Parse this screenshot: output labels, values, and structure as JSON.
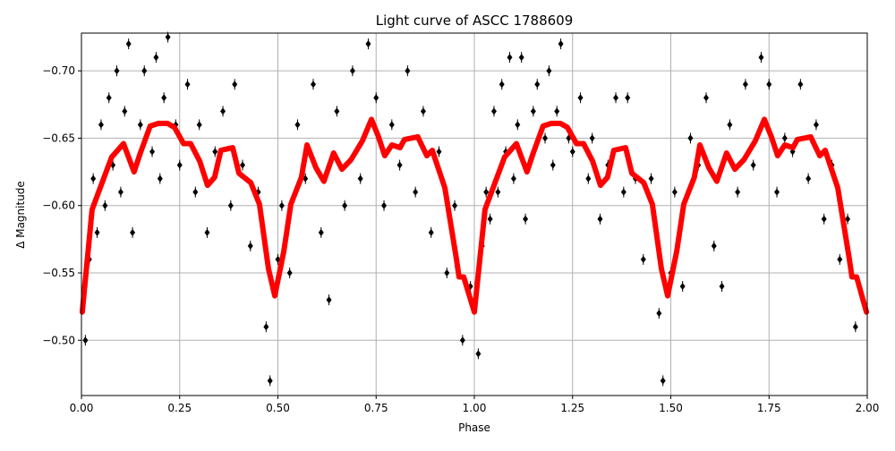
{
  "chart_data": {
    "type": "scatter",
    "title": "Light curve of ASCC 1788609",
    "xlabel": "Phase",
    "ylabel": "Δ Magnitude",
    "xlim": [
      0,
      2
    ],
    "ylim": [
      -0.728,
      -0.459
    ],
    "y_inverted": true,
    "grid": true,
    "x_ticks": [
      0,
      0.25,
      0.5,
      0.75,
      1.0,
      1.25,
      1.5,
      1.75,
      2.0
    ],
    "x_tick_labels": [
      "0.00",
      "0.25",
      "0.50",
      "0.75",
      "1.00",
      "1.25",
      "1.50",
      "1.75",
      "2.00"
    ],
    "y_ticks": [
      -0.7,
      -0.65,
      -0.6,
      -0.55,
      -0.5
    ],
    "y_tick_labels": [
      "−0.70",
      "−0.65",
      "−0.60",
      "−0.55",
      "−0.50"
    ],
    "colors": {
      "observations": "#000000",
      "fit": "#ff0000",
      "grid": "#b0b0b0"
    },
    "series": [
      {
        "kind": "errorbar-scatter",
        "points": [
          [
            0.01,
            -0.5
          ],
          [
            0.02,
            -0.56
          ],
          [
            0.03,
            -0.62
          ],
          [
            0.04,
            -0.58
          ],
          [
            0.05,
            -0.66
          ],
          [
            0.06,
            -0.6
          ],
          [
            0.07,
            -0.68
          ],
          [
            0.08,
            -0.63
          ],
          [
            0.09,
            -0.7
          ],
          [
            0.1,
            -0.61
          ],
          [
            0.11,
            -0.67
          ],
          [
            0.12,
            -0.72
          ],
          [
            0.13,
            -0.58
          ],
          [
            0.15,
            -0.66
          ],
          [
            0.16,
            -0.7
          ],
          [
            0.18,
            -0.64
          ],
          [
            0.19,
            -0.71
          ],
          [
            0.2,
            -0.62
          ],
          [
            0.21,
            -0.68
          ],
          [
            0.22,
            -0.725
          ],
          [
            0.24,
            -0.66
          ],
          [
            0.25,
            -0.63
          ],
          [
            0.27,
            -0.69
          ],
          [
            0.29,
            -0.61
          ],
          [
            0.3,
            -0.66
          ],
          [
            0.32,
            -0.58
          ],
          [
            0.34,
            -0.64
          ],
          [
            0.36,
            -0.67
          ],
          [
            0.38,
            -0.6
          ],
          [
            0.39,
            -0.69
          ],
          [
            0.41,
            -0.63
          ],
          [
            0.43,
            -0.57
          ],
          [
            0.45,
            -0.61
          ],
          [
            0.47,
            -0.51
          ],
          [
            0.48,
            -0.47
          ],
          [
            0.5,
            -0.56
          ],
          [
            0.51,
            -0.6
          ],
          [
            0.53,
            -0.55
          ],
          [
            0.55,
            -0.66
          ],
          [
            0.57,
            -0.62
          ],
          [
            0.59,
            -0.69
          ],
          [
            0.61,
            -0.58
          ],
          [
            0.63,
            -0.53
          ],
          [
            0.65,
            -0.67
          ],
          [
            0.67,
            -0.6
          ],
          [
            0.69,
            -0.7
          ],
          [
            0.71,
            -0.62
          ],
          [
            0.73,
            -0.72
          ],
          [
            0.75,
            -0.68
          ],
          [
            0.77,
            -0.6
          ],
          [
            0.79,
            -0.66
          ],
          [
            0.81,
            -0.63
          ],
          [
            0.83,
            -0.7
          ],
          [
            0.85,
            -0.61
          ],
          [
            0.87,
            -0.67
          ],
          [
            0.89,
            -0.58
          ],
          [
            0.91,
            -0.64
          ],
          [
            0.93,
            -0.55
          ],
          [
            0.95,
            -0.6
          ],
          [
            0.97,
            -0.5
          ],
          [
            0.99,
            -0.54
          ],
          [
            1.01,
            -0.49
          ],
          [
            1.02,
            -0.57
          ],
          [
            1.03,
            -0.61
          ],
          [
            1.04,
            -0.59
          ],
          [
            1.05,
            -0.67
          ],
          [
            1.06,
            -0.61
          ],
          [
            1.07,
            -0.69
          ],
          [
            1.08,
            -0.64
          ],
          [
            1.09,
            -0.71
          ],
          [
            1.1,
            -0.62
          ],
          [
            1.11,
            -0.66
          ],
          [
            1.12,
            -0.71
          ],
          [
            1.13,
            -0.59
          ],
          [
            1.15,
            -0.67
          ],
          [
            1.16,
            -0.69
          ],
          [
            1.18,
            -0.65
          ],
          [
            1.19,
            -0.7
          ],
          [
            1.2,
            -0.63
          ],
          [
            1.21,
            -0.67
          ],
          [
            1.22,
            -0.72
          ],
          [
            1.24,
            -0.65
          ],
          [
            1.25,
            -0.64
          ],
          [
            1.27,
            -0.68
          ],
          [
            1.29,
            -0.62
          ],
          [
            1.3,
            -0.65
          ],
          [
            1.32,
            -0.59
          ],
          [
            1.34,
            -0.63
          ],
          [
            1.36,
            -0.68
          ],
          [
            1.38,
            -0.61
          ],
          [
            1.39,
            -0.68
          ],
          [
            1.41,
            -0.62
          ],
          [
            1.43,
            -0.56
          ],
          [
            1.45,
            -0.62
          ],
          [
            1.47,
            -0.52
          ],
          [
            1.48,
            -0.47
          ],
          [
            1.5,
            -0.55
          ],
          [
            1.51,
            -0.61
          ],
          [
            1.53,
            -0.54
          ],
          [
            1.55,
            -0.65
          ],
          [
            1.57,
            -0.63
          ],
          [
            1.59,
            -0.68
          ],
          [
            1.61,
            -0.57
          ],
          [
            1.63,
            -0.54
          ],
          [
            1.65,
            -0.66
          ],
          [
            1.67,
            -0.61
          ],
          [
            1.69,
            -0.69
          ],
          [
            1.71,
            -0.63
          ],
          [
            1.73,
            -0.71
          ],
          [
            1.75,
            -0.69
          ],
          [
            1.77,
            -0.61
          ],
          [
            1.79,
            -0.65
          ],
          [
            1.81,
            -0.64
          ],
          [
            1.83,
            -0.69
          ],
          [
            1.85,
            -0.62
          ],
          [
            1.87,
            -0.66
          ],
          [
            1.89,
            -0.59
          ],
          [
            1.91,
            -0.63
          ],
          [
            1.93,
            -0.56
          ],
          [
            1.95,
            -0.59
          ],
          [
            1.97,
            -0.51
          ],
          [
            1.99,
            -0.53
          ]
        ]
      },
      {
        "kind": "line",
        "points": [
          [
            0.002,
            -0.521
          ],
          [
            0.027,
            -0.597
          ],
          [
            0.05,
            -0.615
          ],
          [
            0.077,
            -0.636
          ],
          [
            0.107,
            -0.646
          ],
          [
            0.134,
            -0.625
          ],
          [
            0.15,
            -0.639
          ],
          [
            0.175,
            -0.659
          ],
          [
            0.196,
            -0.661
          ],
          [
            0.219,
            -0.661
          ],
          [
            0.237,
            -0.658
          ],
          [
            0.26,
            -0.646
          ],
          [
            0.278,
            -0.646
          ],
          [
            0.301,
            -0.633
          ],
          [
            0.321,
            -0.615
          ],
          [
            0.339,
            -0.621
          ],
          [
            0.355,
            -0.641
          ],
          [
            0.385,
            -0.643
          ],
          [
            0.401,
            -0.624
          ],
          [
            0.431,
            -0.617
          ],
          [
            0.453,
            -0.601
          ],
          [
            0.476,
            -0.553
          ],
          [
            0.492,
            -0.533
          ],
          [
            0.515,
            -0.566
          ],
          [
            0.533,
            -0.601
          ],
          [
            0.56,
            -0.621
          ],
          [
            0.574,
            -0.645
          ],
          [
            0.597,
            -0.628
          ],
          [
            0.617,
            -0.618
          ],
          [
            0.642,
            -0.639
          ],
          [
            0.663,
            -0.627
          ],
          [
            0.686,
            -0.634
          ],
          [
            0.715,
            -0.648
          ],
          [
            0.738,
            -0.664
          ],
          [
            0.756,
            -0.651
          ],
          [
            0.772,
            -0.637
          ],
          [
            0.79,
            -0.645
          ],
          [
            0.811,
            -0.643
          ],
          [
            0.822,
            -0.649
          ],
          [
            0.856,
            -0.651
          ],
          [
            0.879,
            -0.637
          ],
          [
            0.893,
            -0.641
          ],
          [
            0.925,
            -0.613
          ],
          [
            0.954,
            -0.561
          ],
          [
            0.961,
            -0.547
          ],
          [
            0.973,
            -0.547
          ],
          [
            1.0,
            -0.521
          ],
          [
            1.027,
            -0.597
          ],
          [
            1.05,
            -0.615
          ],
          [
            1.077,
            -0.636
          ],
          [
            1.107,
            -0.646
          ],
          [
            1.134,
            -0.625
          ],
          [
            1.15,
            -0.639
          ],
          [
            1.175,
            -0.659
          ],
          [
            1.196,
            -0.661
          ],
          [
            1.219,
            -0.661
          ],
          [
            1.237,
            -0.658
          ],
          [
            1.26,
            -0.646
          ],
          [
            1.278,
            -0.646
          ],
          [
            1.301,
            -0.633
          ],
          [
            1.321,
            -0.615
          ],
          [
            1.339,
            -0.621
          ],
          [
            1.355,
            -0.641
          ],
          [
            1.385,
            -0.643
          ],
          [
            1.401,
            -0.624
          ],
          [
            1.431,
            -0.617
          ],
          [
            1.453,
            -0.601
          ],
          [
            1.476,
            -0.553
          ],
          [
            1.492,
            -0.533
          ],
          [
            1.515,
            -0.566
          ],
          [
            1.533,
            -0.601
          ],
          [
            1.56,
            -0.621
          ],
          [
            1.574,
            -0.645
          ],
          [
            1.597,
            -0.628
          ],
          [
            1.617,
            -0.618
          ],
          [
            1.642,
            -0.639
          ],
          [
            1.663,
            -0.627
          ],
          [
            1.686,
            -0.634
          ],
          [
            1.715,
            -0.648
          ],
          [
            1.738,
            -0.664
          ],
          [
            1.756,
            -0.651
          ],
          [
            1.772,
            -0.637
          ],
          [
            1.79,
            -0.645
          ],
          [
            1.811,
            -0.643
          ],
          [
            1.822,
            -0.649
          ],
          [
            1.856,
            -0.651
          ],
          [
            1.879,
            -0.637
          ],
          [
            1.893,
            -0.641
          ],
          [
            1.925,
            -0.613
          ],
          [
            1.954,
            -0.561
          ],
          [
            1.961,
            -0.547
          ],
          [
            1.973,
            -0.547
          ],
          [
            1.998,
            -0.521
          ]
        ]
      }
    ]
  }
}
